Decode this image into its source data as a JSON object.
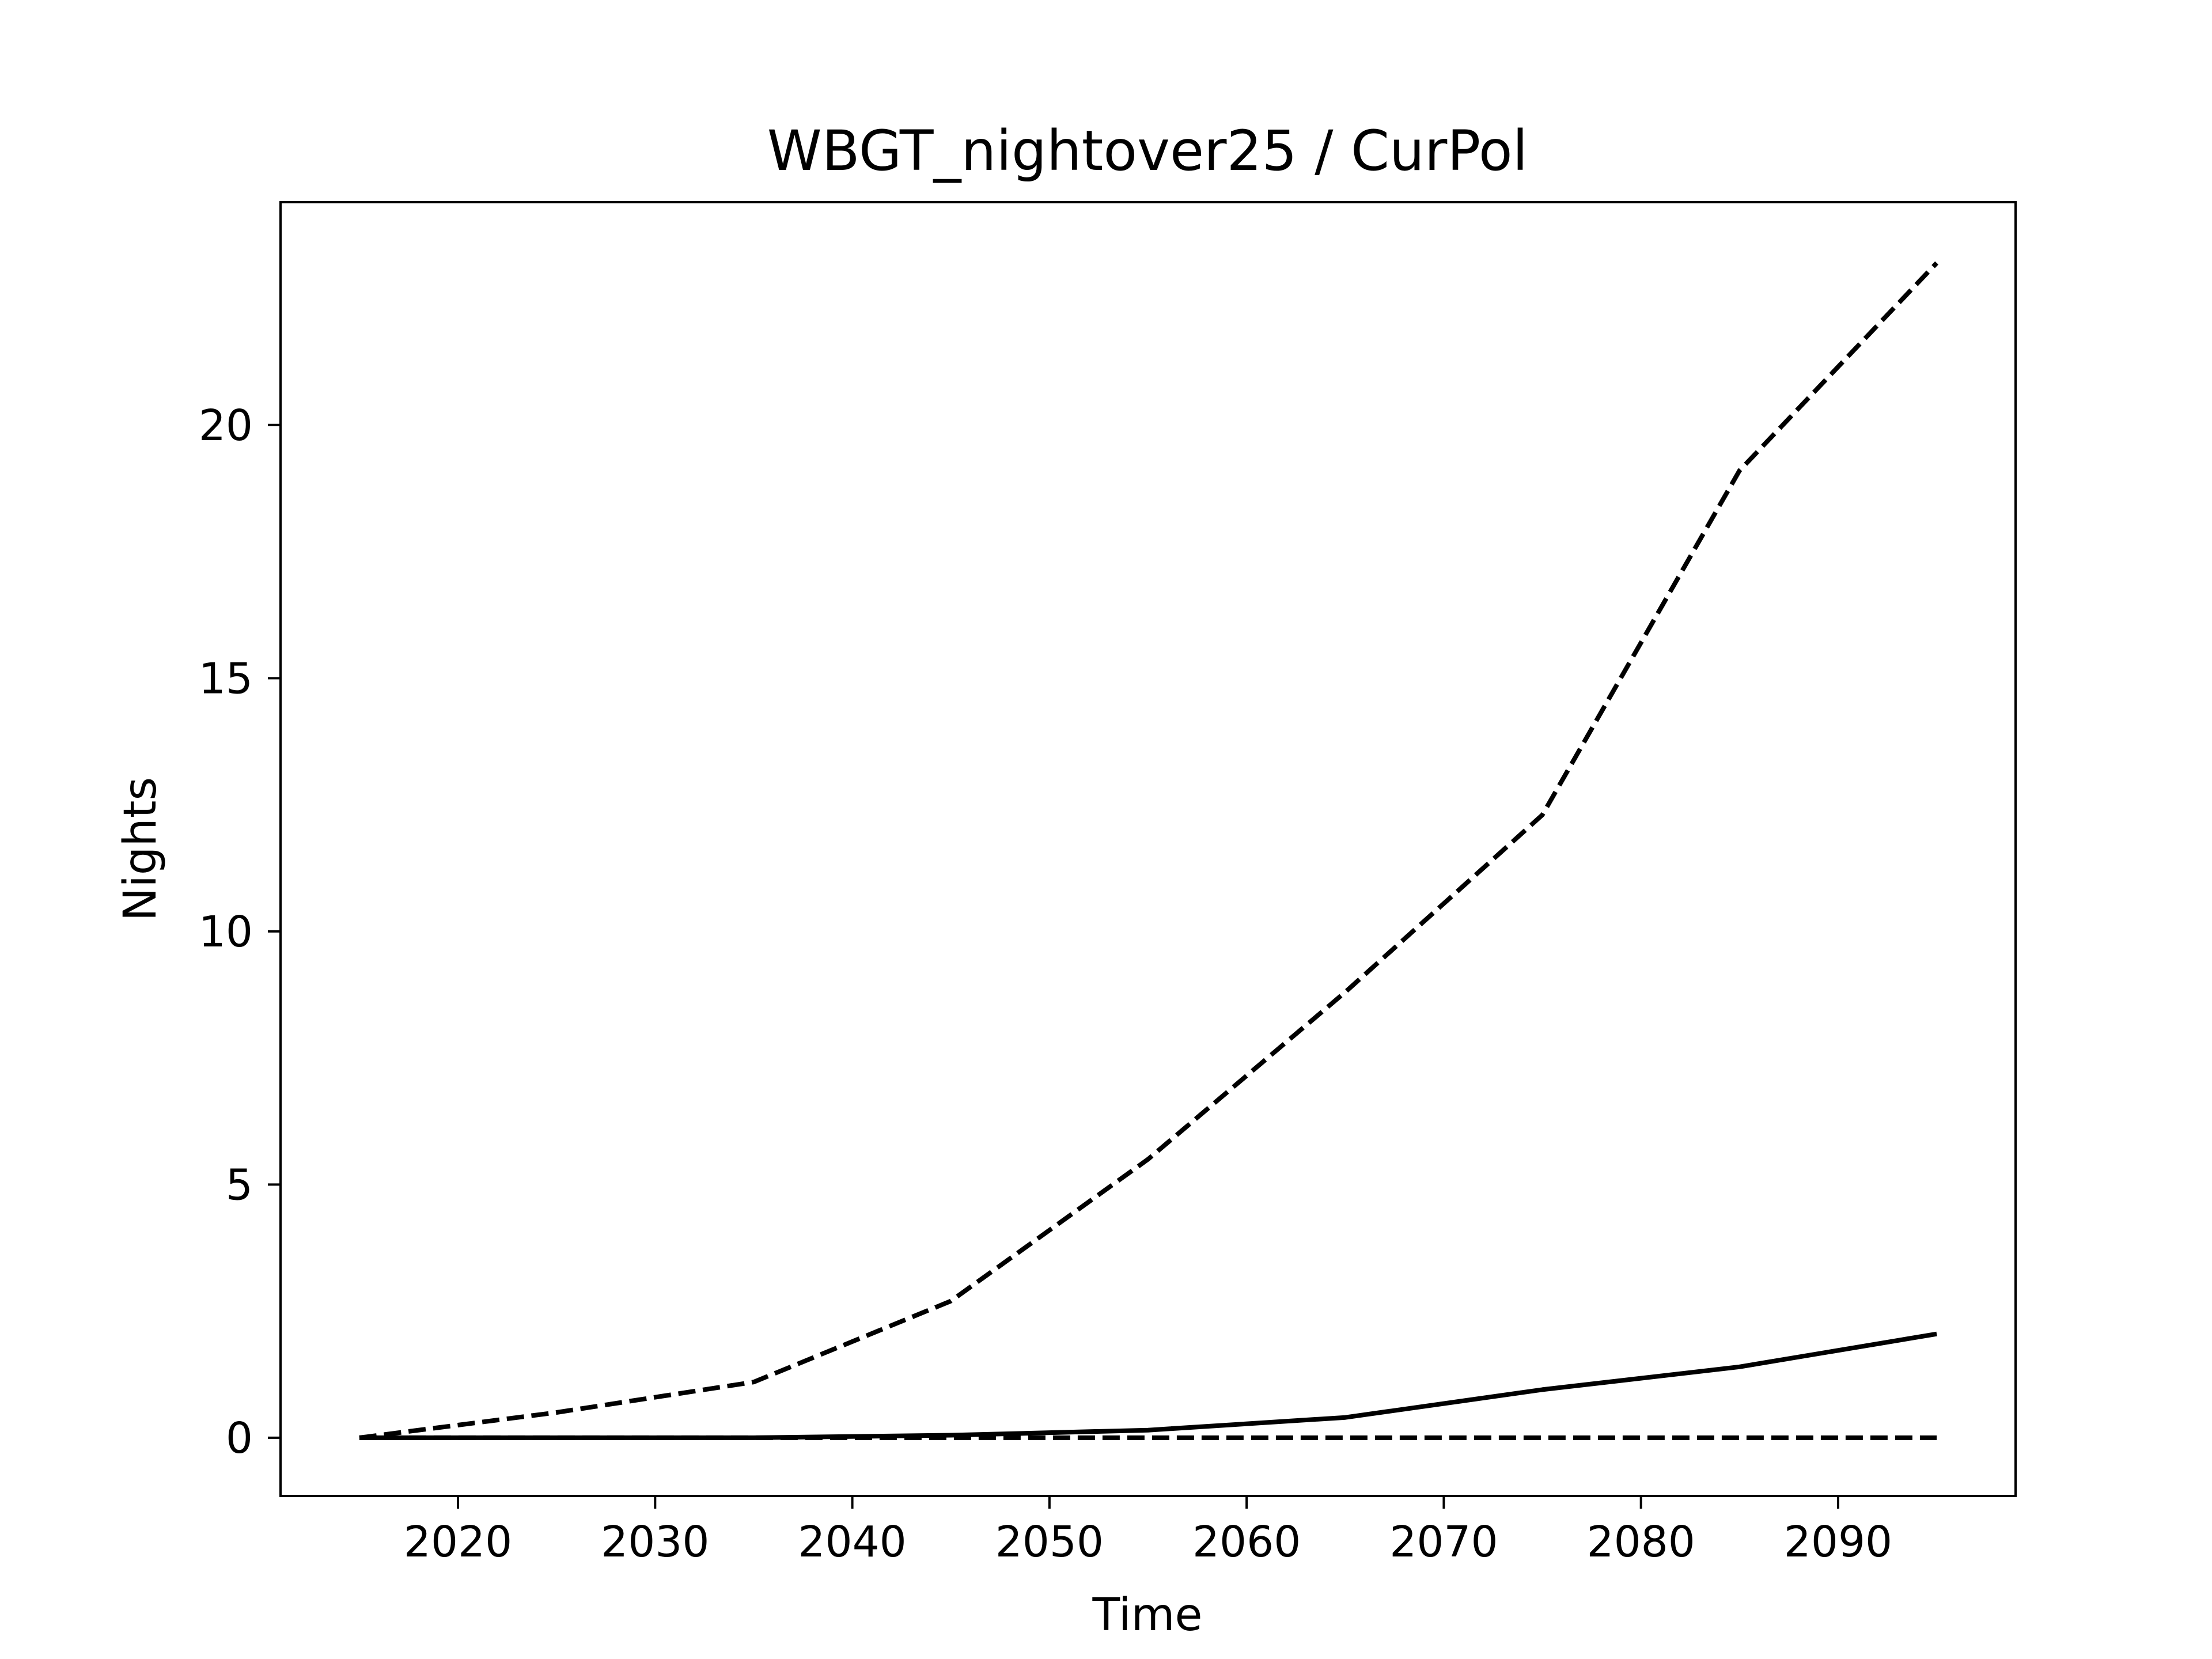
{
  "chart_data": {
    "type": "line",
    "title": "WBGT_nightover25 / CurPol",
    "xlabel": "Time",
    "ylabel": "Nights",
    "xlim": [
      2011,
      2099
    ],
    "ylim": [
      -1.15,
      24.4
    ],
    "xticks": [
      2020,
      2030,
      2040,
      2050,
      2060,
      2070,
      2080,
      2090
    ],
    "yticks": [
      0,
      5,
      10,
      15,
      20
    ],
    "grid": false,
    "legend": "none",
    "x": [
      2015,
      2025,
      2035,
      2045,
      2055,
      2065,
      2075,
      2085,
      2095
    ],
    "series": [
      {
        "style": "dashed",
        "color": "#000000",
        "values": [
          0,
          0.5,
          1.1,
          2.7,
          5.5,
          8.8,
          12.3,
          19.1,
          23.2
        ]
      },
      {
        "style": "solid",
        "color": "#000000",
        "values": [
          0,
          0,
          0,
          0.05,
          0.15,
          0.4,
          0.95,
          1.4,
          2.05
        ]
      },
      {
        "style": "dashed",
        "color": "#000000",
        "values": [
          0,
          0,
          0,
          0,
          0,
          0,
          0,
          0,
          0
        ]
      }
    ]
  }
}
